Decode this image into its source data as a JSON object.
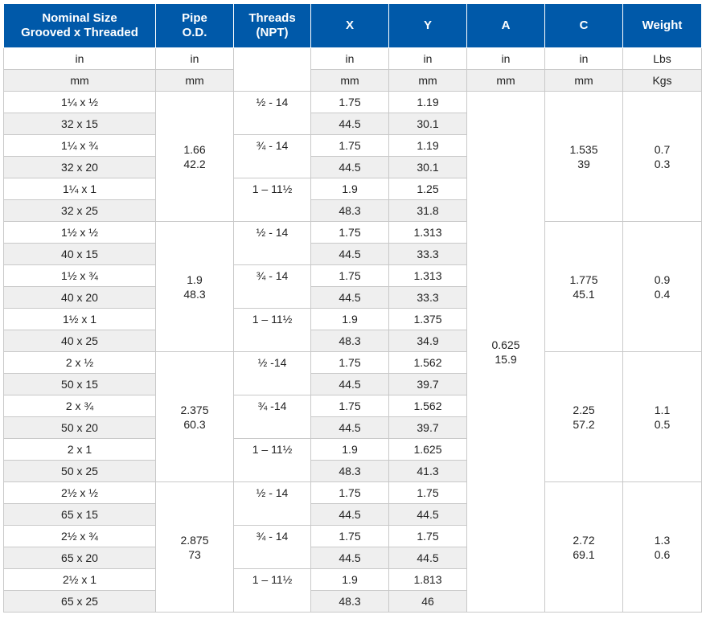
{
  "header": {
    "nominal_size": "Nominal Size",
    "nominal_sub": "Grooved x Threaded",
    "pipe": "Pipe",
    "pipe_sub": "O.D.",
    "threads": "Threads",
    "threads_sub": "(NPT)",
    "x": "X",
    "y": "Y",
    "a": "A",
    "c": "C",
    "weight": "Weight"
  },
  "units": {
    "imperial": {
      "nominal": "in",
      "pipe": "in",
      "x": "in",
      "y": "in",
      "a": "in",
      "c": "in",
      "weight": "Lbs"
    },
    "metric": {
      "nominal": "mm",
      "pipe": "mm",
      "x": "mm",
      "y": "mm",
      "a": "mm",
      "c": "mm",
      "weight": "Kgs"
    }
  },
  "A": {
    "in": "0.625",
    "mm": "15.9"
  },
  "groups": [
    {
      "pipe_in": "1.66",
      "pipe_mm": "42.2",
      "c_in": "1.535",
      "c_mm": "39",
      "w_lbs": "0.7",
      "w_kgs": "0.3",
      "rows": [
        {
          "size_in": "1¼ x ½",
          "size_mm": "32 x 15",
          "threads": "½ - 14",
          "x_in": "1.75",
          "x_mm": "44.5",
          "y_in": "1.19",
          "y_mm": "30.1"
        },
        {
          "size_in": "1¼ x ¾",
          "size_mm": "32 x 20",
          "threads": "¾ - 14",
          "x_in": "1.75",
          "x_mm": "44.5",
          "y_in": "1.19",
          "y_mm": "30.1"
        },
        {
          "size_in": "1¼ x 1",
          "size_mm": "32 x 25",
          "threads": "1 – 11½",
          "x_in": "1.9",
          "x_mm": "48.3",
          "y_in": "1.25",
          "y_mm": "31.8"
        }
      ]
    },
    {
      "pipe_in": "1.9",
      "pipe_mm": "48.3",
      "c_in": "1.775",
      "c_mm": "45.1",
      "w_lbs": "0.9",
      "w_kgs": "0.4",
      "rows": [
        {
          "size_in": "1½ x ½",
          "size_mm": "40 x 15",
          "threads": "½ - 14",
          "x_in": "1.75",
          "x_mm": "44.5",
          "y_in": "1.313",
          "y_mm": "33.3"
        },
        {
          "size_in": "1½ x ¾",
          "size_mm": "40 x 20",
          "threads": "¾ - 14",
          "x_in": "1.75",
          "x_mm": "44.5",
          "y_in": "1.313",
          "y_mm": "33.3"
        },
        {
          "size_in": "1½ x 1",
          "size_mm": "40 x 25",
          "threads": "1 – 11½",
          "x_in": "1.9",
          "x_mm": "48.3",
          "y_in": "1.375",
          "y_mm": "34.9"
        }
      ]
    },
    {
      "pipe_in": "2.375",
      "pipe_mm": "60.3",
      "c_in": "2.25",
      "c_mm": "57.2",
      "w_lbs": "1.1",
      "w_kgs": "0.5",
      "rows": [
        {
          "size_in": "2 x ½",
          "size_mm": "50 x 15",
          "threads": "½ -14",
          "x_in": "1.75",
          "x_mm": "44.5",
          "y_in": "1.562",
          "y_mm": "39.7"
        },
        {
          "size_in": "2 x ¾",
          "size_mm": "50 x 20",
          "threads": "¾ -14",
          "x_in": "1.75",
          "x_mm": "44.5",
          "y_in": "1.562",
          "y_mm": "39.7"
        },
        {
          "size_in": "2 x 1",
          "size_mm": "50 x 25",
          "threads": "1 – 11½",
          "x_in": "1.9",
          "x_mm": "48.3",
          "y_in": "1.625",
          "y_mm": "41.3"
        }
      ]
    },
    {
      "pipe_in": "2.875",
      "pipe_mm": "73",
      "c_in": "2.72",
      "c_mm": "69.1",
      "w_lbs": "1.3",
      "w_kgs": "0.6",
      "rows": [
        {
          "size_in": "2½ x ½",
          "size_mm": "65 x 15",
          "threads": "½ - 14",
          "x_in": "1.75",
          "x_mm": "44.5",
          "y_in": "1.75",
          "y_mm": "44.5"
        },
        {
          "size_in": "2½ x ¾",
          "size_mm": "65 x 20",
          "threads": "¾ - 14",
          "x_in": "1.75",
          "x_mm": "44.5",
          "y_in": "1.75",
          "y_mm": "44.5"
        },
        {
          "size_in": "2½ x 1",
          "size_mm": "65 x 25",
          "threads": "1 – 11½",
          "x_in": "1.9",
          "x_mm": "48.3",
          "y_in": "1.813",
          "y_mm": "46"
        }
      ]
    }
  ]
}
